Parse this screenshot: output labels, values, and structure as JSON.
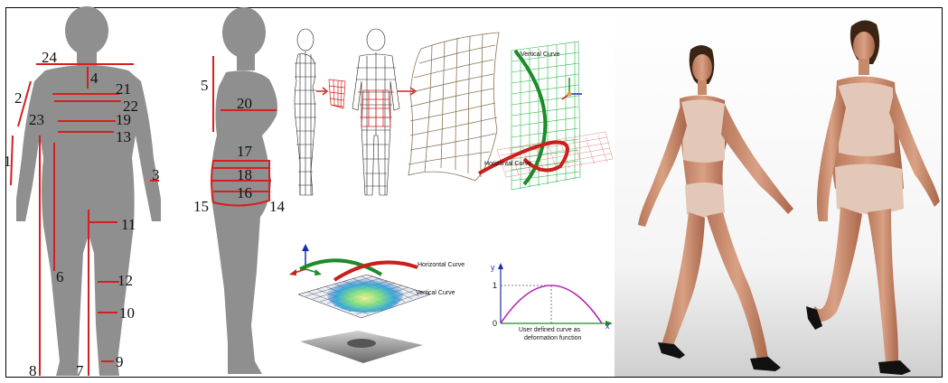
{
  "measurement_labels": [
    "24",
    "4",
    "21",
    "22",
    "2",
    "23",
    "19",
    "13",
    "1",
    "3",
    "11",
    "6",
    "12",
    "10",
    "9",
    "8",
    "7",
    "5",
    "20",
    "17",
    "18",
    "16",
    "15",
    "14"
  ],
  "deformation_labels": {
    "vertical_curve": "Vertical Curve",
    "horizontal_curve": "Horizontal Curve",
    "vertical_curve_b": "Vertical Curve",
    "horizontal_curve_b": "Horizontal Curve"
  },
  "deformation_plot": {
    "y_axis_label": "y",
    "x_axis_label": "x",
    "y_tick_max": "1",
    "origin_label": "0",
    "caption_line1": "User defined curve as",
    "caption_line2": "deformation function"
  },
  "colors": {
    "silhouette": "#8f8f8f",
    "measure_line": "#d42020",
    "skin": "#c98e6e",
    "hair": "#3a2414",
    "curve_red": "#c8201a",
    "curve_green": "#1e8a2a",
    "mesh_green": "#27b84a",
    "plot_curve": "#b02ab0"
  }
}
